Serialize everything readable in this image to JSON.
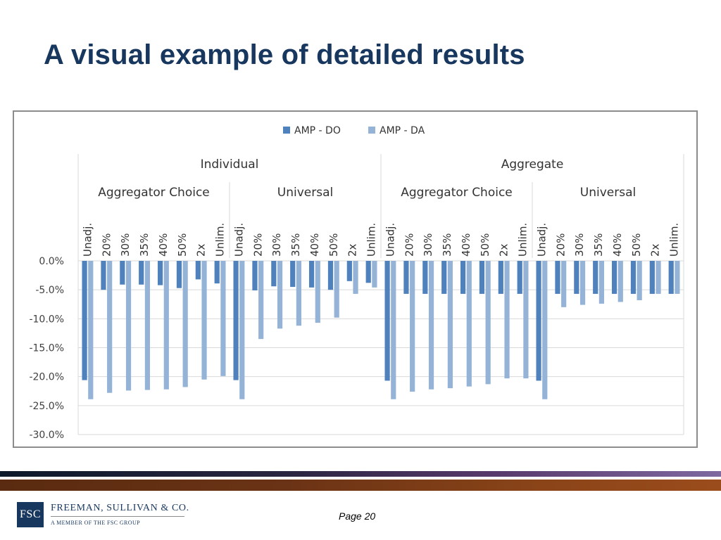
{
  "slide": {
    "title": "A visual example of detailed results",
    "page": "Page 20"
  },
  "branding": {
    "logo_text": "FSC",
    "company": "FREEMAN, SULLIVAN & CO.",
    "tagline": "A MEMBER OF THE FSC GROUP"
  },
  "colors": {
    "title": "#17375e",
    "series_do": "#4f81bd",
    "series_da": "#95b3d7",
    "grid": "#d9d9d9",
    "axis_text": "#404040"
  },
  "chart_data": {
    "type": "bar",
    "legend_position": "top-center",
    "grid": true,
    "ylim": [
      -30.0,
      0.0
    ],
    "yticks": [
      "0.0%",
      "-5.0%",
      "-10.0%",
      "-15.0%",
      "-20.0%",
      "-25.0%",
      "-30.0%"
    ],
    "y_unit": "%",
    "groups_level1": [
      "Individual",
      "Aggregate"
    ],
    "groups_level2": [
      "Aggregator Choice",
      "Universal",
      "Aggregator Choice",
      "Universal"
    ],
    "categories": [
      "Unadj.",
      "20%",
      "30%",
      "35%",
      "40%",
      "50%",
      "2x",
      "Unlim.",
      "Unadj.",
      "20%",
      "30%",
      "35%",
      "40%",
      "50%",
      "2x",
      "Unlim.",
      "Unadj.",
      "20%",
      "30%",
      "35%",
      "40%",
      "50%",
      "2x",
      "Unlim.",
      "Unadj.",
      "20%",
      "30%",
      "35%",
      "40%",
      "50%",
      "2x",
      "Unlim."
    ],
    "series": [
      {
        "name": "AMP - DO",
        "values": [
          -20.6,
          -5.0,
          -4.1,
          -4.1,
          -4.2,
          -4.7,
          -3.2,
          -3.9,
          -20.6,
          -5.1,
          -4.4,
          -4.5,
          -4.6,
          -5.0,
          -3.5,
          -3.8,
          -20.7,
          -5.7,
          -5.7,
          -5.7,
          -5.7,
          -5.7,
          -5.7,
          -5.7,
          -20.7,
          -5.7,
          -5.7,
          -5.7,
          -5.7,
          -5.7,
          -5.7,
          -5.7
        ]
      },
      {
        "name": "AMP - DA",
        "values": [
          -23.9,
          -22.8,
          -22.4,
          -22.3,
          -22.2,
          -21.8,
          -20.5,
          -19.9,
          -23.9,
          -13.5,
          -11.7,
          -11.2,
          -10.7,
          -9.8,
          -5.7,
          -4.6,
          -23.9,
          -22.6,
          -22.2,
          -22.0,
          -21.7,
          -21.3,
          -20.3,
          -20.3,
          -23.9,
          -8.0,
          -7.6,
          -7.4,
          -7.1,
          -6.8,
          -5.7,
          -5.7
        ]
      }
    ]
  }
}
